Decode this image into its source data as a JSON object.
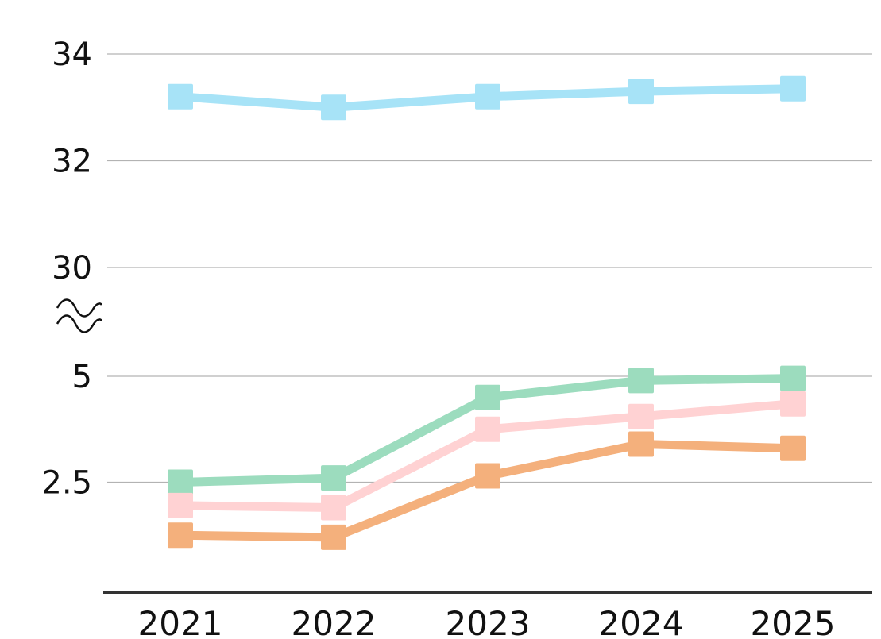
{
  "chart_data": {
    "type": "line",
    "title": "",
    "xlabel": "",
    "ylabel": "",
    "x": [
      "2021",
      "2022",
      "2023",
      "2024",
      "2025"
    ],
    "axis_break": true,
    "upper_segment": {
      "ylim": [
        30,
        34
      ],
      "ticks": [
        "30",
        "32",
        "34"
      ]
    },
    "lower_segment": {
      "ylim": [
        0,
        5
      ],
      "ticks": [
        "2.5",
        "5"
      ]
    },
    "grid": true,
    "legend": "none",
    "series": [
      {
        "color": "#a7e3f7",
        "segment": "upper",
        "values": [
          33.2,
          33.0,
          33.2,
          33.3,
          33.35
        ]
      },
      {
        "color": "#9cdcbe",
        "segment": "lower",
        "values": [
          2.5,
          2.6,
          4.5,
          4.9,
          4.95
        ]
      },
      {
        "color": "#ffd2d3",
        "segment": "lower",
        "values": [
          1.95,
          1.9,
          3.75,
          4.05,
          4.35
        ]
      },
      {
        "color": "#f4b07c",
        "segment": "lower",
        "values": [
          1.25,
          1.2,
          2.65,
          3.4,
          3.3
        ]
      }
    ]
  }
}
